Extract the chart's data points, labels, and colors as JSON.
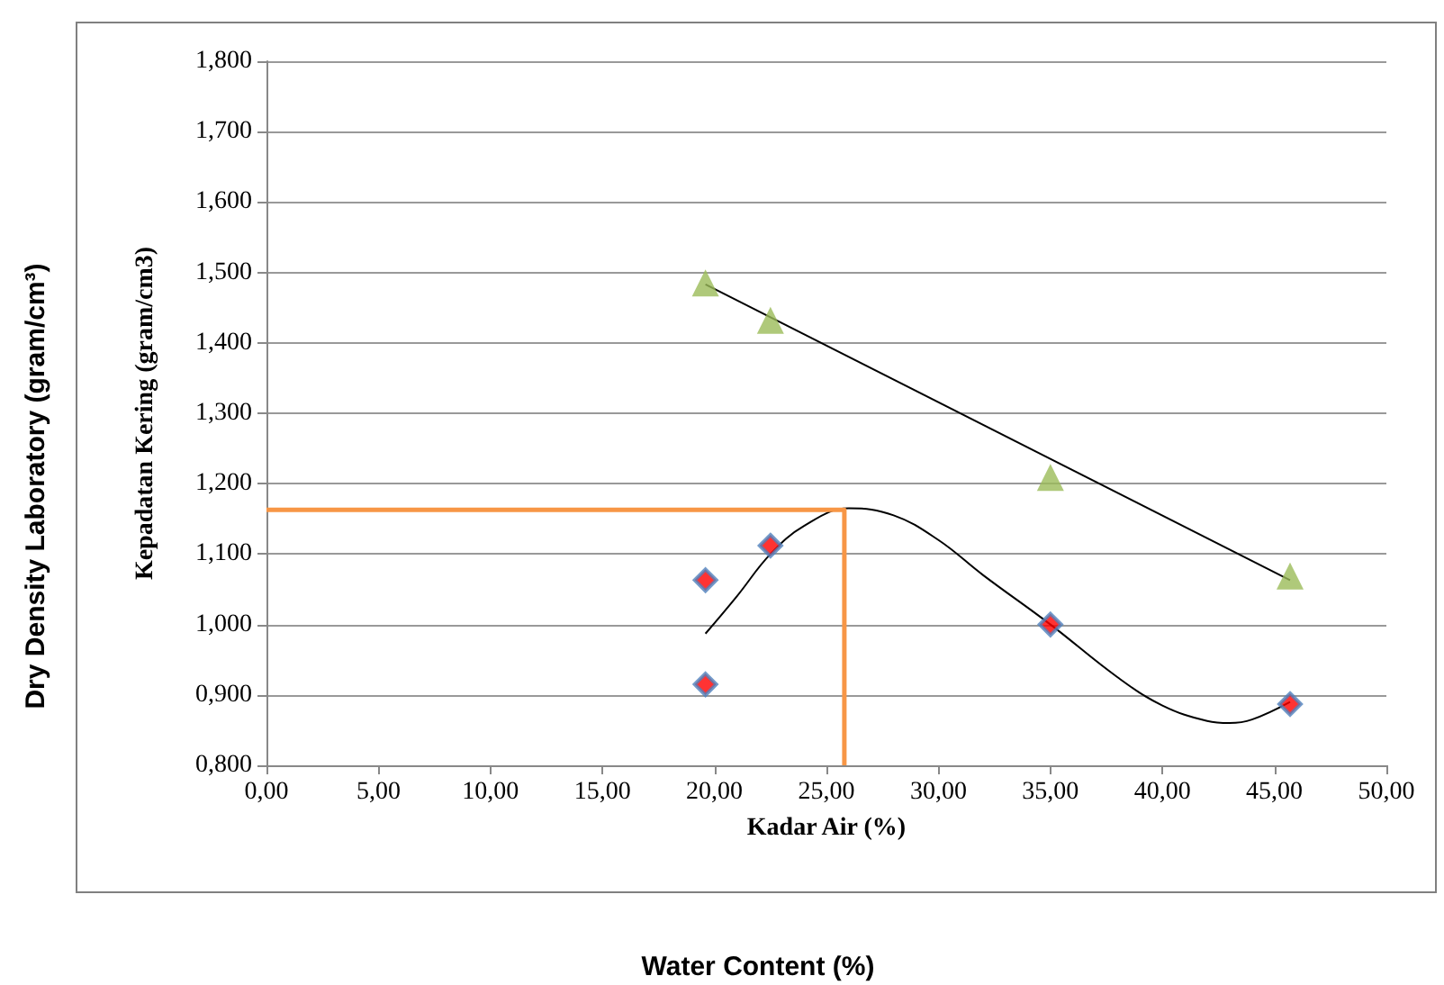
{
  "chart_data": {
    "type": "scatter",
    "xlabel": "Kadar Air (%)",
    "ylabel": "Kepadatan Kering (gram/cm3)",
    "annotations": [
      "Dry Density Laboratory (gram/cm³)",
      "Water Content (%)"
    ],
    "xlim": [
      0,
      50
    ],
    "xticks": [
      {
        "value": 0,
        "label": "0,00"
      },
      {
        "value": 5,
        "label": "5,00"
      },
      {
        "value": 10,
        "label": "10,00"
      },
      {
        "value": 15,
        "label": "15,00"
      },
      {
        "value": 20,
        "label": "20,00"
      },
      {
        "value": 25,
        "label": "25,00"
      },
      {
        "value": 30,
        "label": "30,00"
      },
      {
        "value": 35,
        "label": "35,00"
      },
      {
        "value": 40,
        "label": "40,00"
      },
      {
        "value": 45,
        "label": "45,00"
      },
      {
        "value": 50,
        "label": "50,00"
      }
    ],
    "ylim": [
      0.8,
      1.8
    ],
    "yticks": [
      {
        "value": 0.8,
        "label": "0,800"
      },
      {
        "value": 0.9,
        "label": "0,900"
      },
      {
        "value": 1.0,
        "label": "1,000"
      },
      {
        "value": 1.1,
        "label": "1,100"
      },
      {
        "value": 1.2,
        "label": "1,200"
      },
      {
        "value": 1.3,
        "label": "1,300"
      },
      {
        "value": 1.4,
        "label": "1,400"
      },
      {
        "value": 1.5,
        "label": "1,500"
      },
      {
        "value": 1.6,
        "label": "1,600"
      },
      {
        "value": 1.7,
        "label": "1,700"
      },
      {
        "value": 1.8,
        "label": "1,800"
      }
    ],
    "grid": "y",
    "series": [
      {
        "type": "line",
        "color": "#000000",
        "marker": "none",
        "x": [
          19.6,
          45.7
        ],
        "values": [
          1.483,
          1.063
        ]
      },
      {
        "type": "line",
        "color": "#000000",
        "marker": "none",
        "x": [
          19.6,
          21,
          22.5,
          24,
          26,
          28,
          30,
          32,
          35,
          38,
          40,
          42,
          43,
          44,
          45.7
        ],
        "values": [
          0.987,
          1.04,
          1.1,
          1.14,
          1.165,
          1.155,
          1.12,
          1.07,
          1.0,
          0.925,
          0.885,
          0.863,
          0.86,
          0.865,
          0.89
        ]
      },
      {
        "type": "line",
        "color": "#f79646",
        "marker": "none",
        "x": [
          0,
          25.8,
          25.8
        ],
        "values": [
          1.163,
          1.163,
          0.8
        ]
      },
      {
        "color": "#9bbb59",
        "marker": "triangle",
        "x": [
          19.6,
          22.5,
          35.0,
          45.7
        ],
        "values": [
          1.485,
          1.432,
          1.209,
          1.069
        ]
      },
      {
        "color": "#ff0000",
        "marker": "diamond",
        "x": [
          19.6,
          19.6,
          22.5,
          35.0,
          45.7
        ],
        "values": [
          1.063,
          0.915,
          1.112,
          1.0,
          0.887
        ]
      }
    ]
  }
}
